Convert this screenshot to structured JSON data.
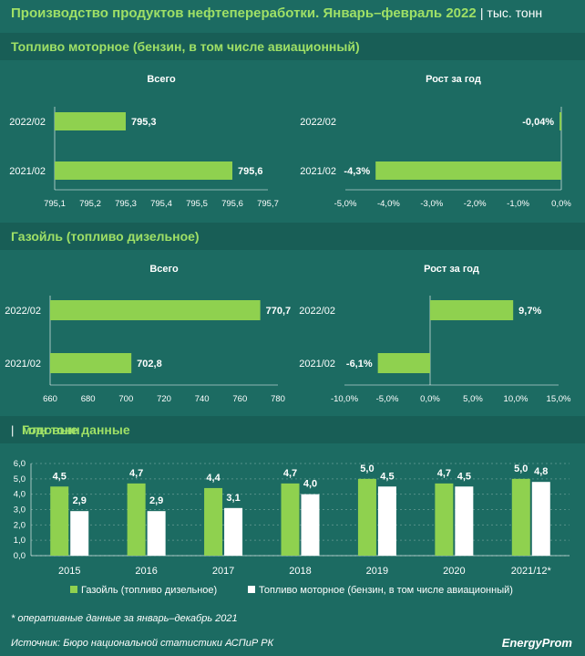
{
  "title": "Производство продуктов нефтепереработки. Январь–февраль 2022",
  "title_unit": "тыс. тонн",
  "sections": {
    "fuel_header": "Топливо моторное (бензин, в том числе авиационный)",
    "gasoil_header": "Газойль (топливо дизельное)",
    "annual_header": "Годовые данные",
    "annual_unit": "млн тонн"
  },
  "colors": {
    "green": "#8fd14f",
    "white": "#ffffff",
    "bg": "#1c6b62",
    "header": "#185e56",
    "accent": "#9fe066"
  },
  "chart_data": [
    {
      "type": "bar",
      "orientation": "horizontal",
      "title": "Всего",
      "categories": [
        "2022/02",
        "2021/02"
      ],
      "values": [
        795.3,
        795.6
      ],
      "labels": [
        "795,3",
        "795,6"
      ],
      "xlim": [
        795.1,
        795.7
      ],
      "xticks": [
        "795,1",
        "795,2",
        "795,3",
        "795,4",
        "795,5",
        "795,6",
        "795,7"
      ]
    },
    {
      "type": "bar",
      "orientation": "horizontal",
      "title": "Рост за год",
      "categories": [
        "2022/02",
        "2021/02"
      ],
      "values": [
        -0.04,
        -4.3
      ],
      "labels": [
        "-0,04%",
        "-4,3%"
      ],
      "xlim": [
        -5.0,
        0.0
      ],
      "xticks": [
        "-5,0%",
        "-4,0%",
        "-3,0%",
        "-2,0%",
        "-1,0%",
        "0,0%"
      ]
    },
    {
      "type": "bar",
      "orientation": "horizontal",
      "title": "Всего",
      "categories": [
        "2022/02",
        "2021/02"
      ],
      "values": [
        770.7,
        702.8
      ],
      "labels": [
        "770,7",
        "702,8"
      ],
      "xlim": [
        660,
        780
      ],
      "xticks": [
        "660",
        "680",
        "700",
        "720",
        "740",
        "760",
        "780"
      ]
    },
    {
      "type": "bar",
      "orientation": "horizontal",
      "title": "Рост за год",
      "categories": [
        "2022/02",
        "2021/02"
      ],
      "values": [
        9.7,
        -6.1
      ],
      "labels": [
        "9,7%",
        "-6,1%"
      ],
      "xlim": [
        -10.0,
        15.0
      ],
      "xticks": [
        "-10,0%",
        "-5,0%",
        "0,0%",
        "5,0%",
        "10,0%",
        "15,0%"
      ]
    },
    {
      "type": "bar",
      "orientation": "vertical",
      "categories": [
        "2015",
        "2016",
        "2017",
        "2018",
        "2019",
        "2020",
        "2021/12*"
      ],
      "series": [
        {
          "name": "Газойль (топливо дизельное)",
          "values": [
            4.5,
            4.7,
            4.4,
            4.7,
            5.0,
            4.7,
            5.0
          ],
          "labels": [
            "4,5",
            "4,7",
            "4,4",
            "4,7",
            "5,0",
            "4,7",
            "5,0"
          ]
        },
        {
          "name": "Топливо моторное (бензин, в том числе авиационный)",
          "values": [
            2.9,
            2.9,
            3.1,
            4.0,
            4.5,
            4.5,
            4.8
          ],
          "labels": [
            "2,9",
            "2,9",
            "3,1",
            "4,0",
            "4,5",
            "4,5",
            "4,8"
          ]
        }
      ],
      "ylim": [
        0,
        6
      ],
      "yticks": [
        "0,0",
        "1,0",
        "2,0",
        "3,0",
        "4,0",
        "5,0",
        "6,0"
      ],
      "legend": "bottom"
    }
  ],
  "footnote": "* оперативные данные за январь–декабрь 2021",
  "source": "Источник: Бюро национальной статистики АСПиР РК",
  "logo": "EnergyProm"
}
